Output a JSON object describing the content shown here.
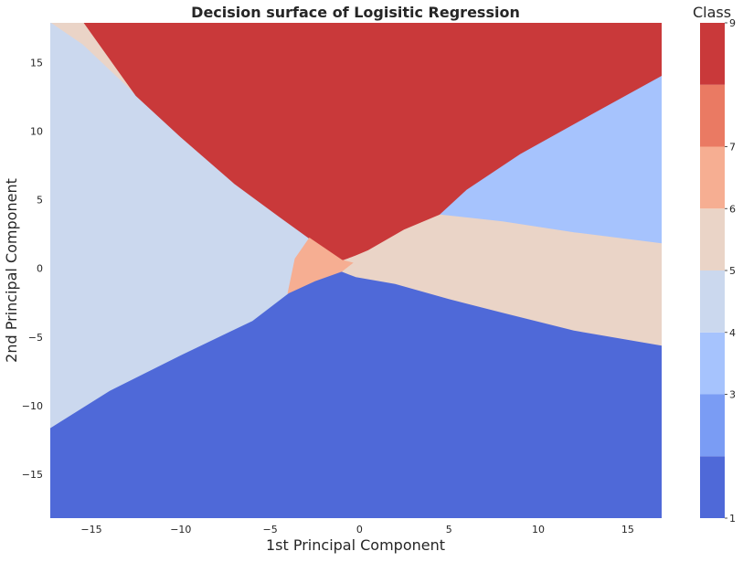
{
  "chart_data": {
    "type": "contour",
    "title": "Decision surface of Logisitic Regression",
    "xlabel": "1st Principal Component",
    "ylabel": "2nd Principal Component",
    "xlim": [
      -17.3,
      16.9
    ],
    "ylim": [
      -18.2,
      17.9
    ],
    "xticks": [
      -15,
      -10,
      -5,
      0,
      5,
      10,
      15
    ],
    "xtick_labels": [
      "−15",
      "−10",
      "−5",
      "0",
      "5",
      "10",
      "15"
    ],
    "yticks": [
      -15,
      -10,
      -5,
      0,
      5,
      10,
      15
    ],
    "ytick_labels": [
      "−15",
      "−10",
      "−5",
      "0",
      "5",
      "10",
      "15"
    ],
    "grid": false,
    "colorbar": {
      "title": "Class",
      "range": [
        1,
        9
      ],
      "ticks": [
        1,
        3,
        4,
        5,
        6,
        7,
        9
      ],
      "tick_labels": [
        "1",
        "3",
        "4",
        "5",
        "6",
        "7",
        "9"
      ],
      "levels": [
        {
          "from": 1,
          "to": 2,
          "color": "#4f69d8"
        },
        {
          "from": 2,
          "to": 3,
          "color": "#7a9cf4"
        },
        {
          "from": 3,
          "to": 4,
          "color": "#a6c3fd"
        },
        {
          "from": 4,
          "to": 5,
          "color": "#cbd8ee"
        },
        {
          "from": 5,
          "to": 6,
          "color": "#ead4c7"
        },
        {
          "from": 6,
          "to": 7,
          "color": "#f6ae92"
        },
        {
          "from": 7,
          "to": 8,
          "color": "#ea7a63"
        },
        {
          "from": 8,
          "to": 9,
          "color": "#c9393a"
        }
      ]
    },
    "regions": [
      {
        "class": 1,
        "color": "#4f69d8",
        "polygon": [
          [
            -17.3,
            -18.2
          ],
          [
            16.9,
            -18.2
          ],
          [
            16.9,
            -5.6
          ],
          [
            12,
            -4.5
          ],
          [
            8,
            -3.2
          ],
          [
            5,
            -2.2
          ],
          [
            2,
            -1.1
          ],
          [
            -0.2,
            -0.6
          ],
          [
            -1,
            -0.2
          ],
          [
            -2.5,
            -0.9
          ],
          [
            -4,
            -1.8
          ],
          [
            -6,
            -3.8
          ],
          [
            -10,
            -6.3
          ],
          [
            -14,
            -8.9
          ],
          [
            -17.3,
            -11.6
          ]
        ]
      },
      {
        "class": 4,
        "color": "#cbd8ee",
        "polygon": [
          [
            -17.3,
            -11.6
          ],
          [
            -14,
            -8.9
          ],
          [
            -10,
            -6.3
          ],
          [
            -6,
            -3.8
          ],
          [
            -4,
            -1.8
          ],
          [
            -3.6,
            0.7
          ],
          [
            -2.8,
            2.2
          ],
          [
            -4.5,
            3.8
          ],
          [
            -7,
            6.2
          ],
          [
            -10,
            9.6
          ],
          [
            -12.5,
            12.6
          ],
          [
            -15.5,
            16.3
          ],
          [
            -17.3,
            17.9
          ]
        ]
      },
      {
        "class": 9,
        "color": "#c9393a",
        "polygon": [
          [
            -15.4,
            17.9
          ],
          [
            16.9,
            17.9
          ],
          [
            16.9,
            14
          ],
          [
            13,
            11.2
          ],
          [
            9,
            8.3
          ],
          [
            6,
            5.7
          ],
          [
            4.5,
            3.9
          ],
          [
            2.5,
            2.8
          ],
          [
            0.5,
            1.3
          ],
          [
            -1,
            0.6
          ],
          [
            -2.8,
            2.2
          ],
          [
            -4.5,
            3.8
          ],
          [
            -7,
            6.2
          ],
          [
            -10,
            9.6
          ],
          [
            -12.5,
            12.6
          ]
        ]
      },
      {
        "class": 3,
        "color": "#a6c3fd",
        "polygon": [
          [
            16.9,
            14
          ],
          [
            13,
            11.2
          ],
          [
            9,
            8.3
          ],
          [
            6,
            5.7
          ],
          [
            4.5,
            3.9
          ],
          [
            8,
            3.4
          ],
          [
            12,
            2.6
          ],
          [
            16.9,
            1.8
          ]
        ]
      },
      {
        "class": 5,
        "color": "#ead4c7",
        "polygon": [
          [
            4.5,
            3.9
          ],
          [
            8,
            3.4
          ],
          [
            12,
            2.6
          ],
          [
            16.9,
            1.8
          ],
          [
            16.9,
            -5.6
          ],
          [
            12,
            -4.5
          ],
          [
            8,
            -3.2
          ],
          [
            5,
            -2.2
          ],
          [
            2,
            -1.1
          ],
          [
            -0.2,
            -0.6
          ],
          [
            -1,
            -0.2
          ],
          [
            -0.4,
            0.8
          ],
          [
            0.5,
            1.3
          ],
          [
            2.5,
            2.8
          ]
        ]
      },
      {
        "class": 6,
        "color": "#f6ae92",
        "polygon": [
          [
            -2.8,
            2.2
          ],
          [
            -1,
            0.6
          ],
          [
            -0.4,
            0.4
          ],
          [
            -1,
            -0.2
          ],
          [
            -2.5,
            -0.9
          ],
          [
            -4,
            -1.8
          ],
          [
            -3.6,
            0.7
          ]
        ]
      }
    ]
  }
}
